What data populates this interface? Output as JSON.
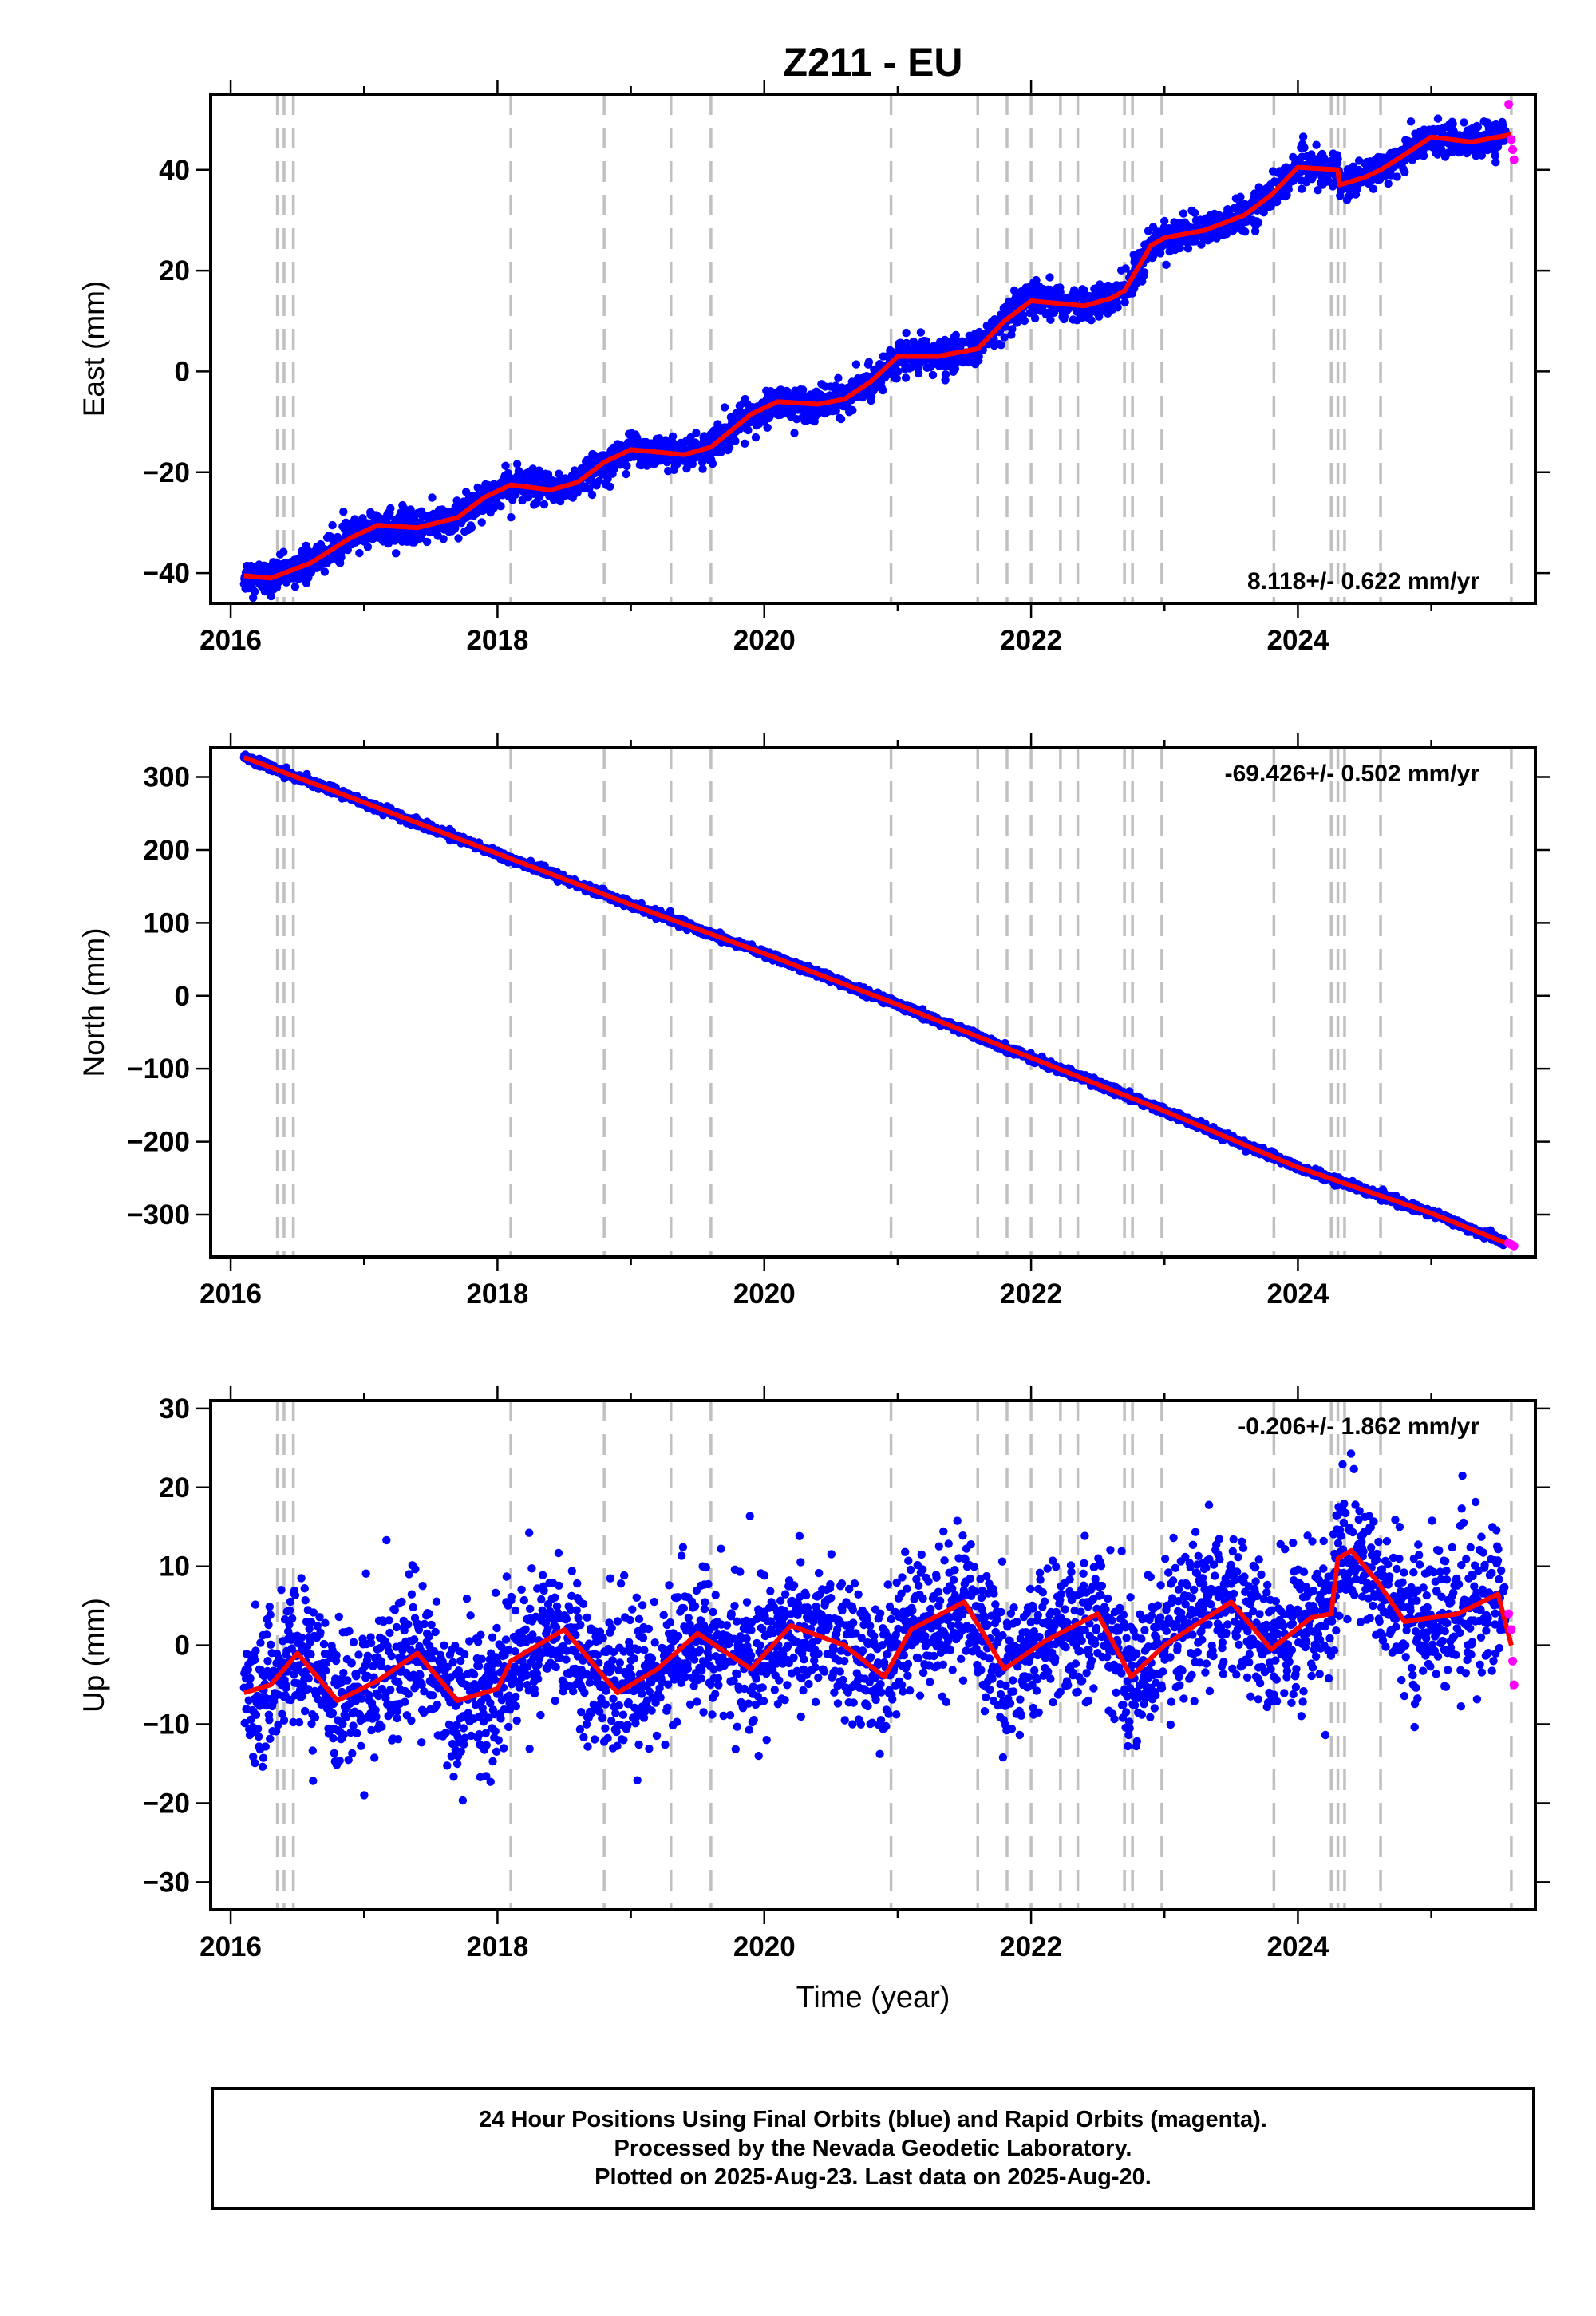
{
  "title": "Z211 - EU",
  "xlabel": "Time (year)",
  "colors": {
    "final_points": "#0000ff",
    "rapid_points": "#ff00ff",
    "model_line": "#ff0000",
    "event_lines": "#c0c0c0",
    "frame": "#000000"
  },
  "footer": {
    "line1": "24 Hour Positions Using Final Orbits (blue) and Rapid Orbits (magenta).",
    "line2": "Processed by the Nevada Geodetic Laboratory.",
    "line3": "Plotted on 2025-Aug-23. Last data on 2025-Aug-20."
  },
  "chart_data": [
    {
      "type": "scatter",
      "component": "East",
      "ylabel": "East (mm)",
      "xlim": [
        2015.85,
        2025.78
      ],
      "ylim": [
        -46,
        55
      ],
      "x_ticks": [
        2016,
        2018,
        2020,
        2022,
        2024
      ],
      "y_ticks": [
        -40,
        -20,
        0,
        20,
        40
      ],
      "velocity_label": "8.118+/- 0.622 mm/yr",
      "velocity_placement": "bottom-right",
      "event_lines": [
        2016.35,
        2016.4,
        2016.47,
        2018.1,
        2018.8,
        2019.3,
        2019.6,
        2020.95,
        2021.6,
        2021.82,
        2022.0,
        2022.22,
        2022.35,
        2022.7,
        2022.76,
        2022.98,
        2023.82,
        2024.25,
        2024.3,
        2024.35,
        2024.62,
        2025.6
      ],
      "scatter_spread_mm": 1.6,
      "model_series": {
        "name": "model",
        "x": [
          2016.1,
          2016.3,
          2016.6,
          2016.9,
          2017.1,
          2017.4,
          2017.7,
          2017.9,
          2018.1,
          2018.4,
          2018.6,
          2018.8,
          2019.0,
          2019.2,
          2019.4,
          2019.6,
          2019.9,
          2020.1,
          2020.4,
          2020.6,
          2020.8,
          2021.0,
          2021.3,
          2021.6,
          2021.8,
          2022.0,
          2022.2,
          2022.4,
          2022.6,
          2022.7,
          2022.9,
          2023.0,
          2023.3,
          2023.6,
          2023.8,
          2024.0,
          2024.3,
          2024.31,
          2024.5,
          2024.62,
          2024.8,
          2025.0,
          2025.3,
          2025.6
        ],
        "y": [
          -40.5,
          -41,
          -38,
          -33,
          -30.5,
          -31,
          -29,
          -25,
          -22.5,
          -23.5,
          -22,
          -18,
          -15.5,
          -16,
          -16.5,
          -15,
          -8.5,
          -6,
          -6.5,
          -5.5,
          -2,
          3,
          3,
          4.5,
          10,
          14,
          13.5,
          13,
          14.5,
          16,
          25,
          26.5,
          28,
          31,
          35,
          40.5,
          40,
          37,
          38.5,
          40,
          43,
          46.5,
          45.5,
          47
        ]
      },
      "rapid_points": {
        "x": [
          2025.58,
          2025.6,
          2025.61,
          2025.62
        ],
        "y": [
          53,
          46,
          44,
          42
        ]
      }
    },
    {
      "type": "scatter",
      "component": "North",
      "ylabel": "North (mm)",
      "xlim": [
        2015.85,
        2025.78
      ],
      "ylim": [
        -358,
        340
      ],
      "x_ticks": [
        2016,
        2018,
        2020,
        2022,
        2024
      ],
      "y_ticks": [
        -300,
        -200,
        -100,
        0,
        100,
        200,
        300
      ],
      "velocity_label": "-69.426+/- 0.502 mm/yr",
      "velocity_placement": "top-right",
      "event_lines": [
        2016.35,
        2016.4,
        2016.47,
        2018.1,
        2018.8,
        2019.3,
        2019.6,
        2020.95,
        2021.6,
        2021.82,
        2022.0,
        2022.22,
        2022.35,
        2022.7,
        2022.76,
        2022.98,
        2023.82,
        2024.25,
        2024.3,
        2024.35,
        2024.62,
        2025.6
      ],
      "scatter_spread_mm": 2.5,
      "model_series": {
        "name": "model",
        "x": [
          2016.1,
          2017.0,
          2018.0,
          2019.0,
          2020.0,
          2021.0,
          2022.0,
          2023.0,
          2024.0,
          2025.0,
          2025.6
        ],
        "y": [
          327,
          265,
          195,
          125,
          58,
          -12,
          -85,
          -158,
          -235,
          -298,
          -342
        ]
      },
      "rapid_points": {
        "x": [
          2025.58,
          2025.6,
          2025.62
        ],
        "y": [
          -339,
          -341,
          -343
        ]
      }
    },
    {
      "type": "scatter",
      "component": "Up",
      "ylabel": "Up (mm)",
      "xlim": [
        2015.85,
        2025.78
      ],
      "ylim": [
        -33.5,
        31
      ],
      "x_ticks": [
        2016,
        2018,
        2020,
        2022,
        2024
      ],
      "y_ticks": [
        -30,
        -20,
        -10,
        0,
        10,
        20,
        30
      ],
      "velocity_label": "-0.206+/- 1.862 mm/yr",
      "velocity_placement": "top-right",
      "event_lines": [
        2016.35,
        2016.4,
        2016.47,
        2018.1,
        2018.8,
        2019.3,
        2019.6,
        2020.95,
        2021.6,
        2021.82,
        2022.0,
        2022.22,
        2022.35,
        2022.7,
        2022.76,
        2022.98,
        2023.82,
        2024.25,
        2024.3,
        2024.35,
        2024.62,
        2025.6
      ],
      "scatter_spread_mm": 4.5,
      "model_series": {
        "name": "model",
        "x": [
          2016.1,
          2016.3,
          2016.5,
          2016.8,
          2017.1,
          2017.4,
          2017.7,
          2018.0,
          2018.1,
          2018.5,
          2018.9,
          2019.2,
          2019.5,
          2019.9,
          2020.2,
          2020.6,
          2020.9,
          2021.1,
          2021.5,
          2021.8,
          2022.1,
          2022.5,
          2022.75,
          2023.0,
          2023.5,
          2023.8,
          2024.1,
          2024.25,
          2024.3,
          2024.4,
          2024.6,
          2024.8,
          2025.2,
          2025.5,
          2025.6
        ],
        "y": [
          -6,
          -5,
          -1,
          -7,
          -4.5,
          -1,
          -7,
          -5.5,
          -2,
          2,
          -6,
          -3,
          1.5,
          -3,
          2.5,
          0,
          -4,
          2,
          5.5,
          -3,
          0.5,
          4,
          -4,
          0,
          5.5,
          -0.5,
          3.5,
          4,
          11,
          12,
          8,
          3,
          4,
          6.5,
          0
        ]
      },
      "rapid_points": {
        "x": [
          2025.58,
          2025.6,
          2025.61,
          2025.62
        ],
        "y": [
          4,
          2,
          -2,
          -5
        ]
      }
    }
  ]
}
